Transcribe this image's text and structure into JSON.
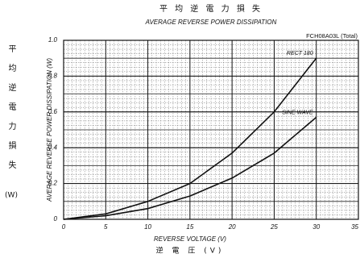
{
  "chart_data": {
    "type": "line",
    "title": "平 均 逆 電 力 損 失",
    "subtitle": "AVERAGE REVERSE POWER DISSIPATION",
    "part_label": "FCH08A03L (Total)",
    "y_label": "AVERAGE REVERSE POWER DISSIPATION (W)",
    "y_label_jp": "平均逆電力損失",
    "y_unit_jp": "(W)",
    "x_label": "REVERSE VOLTAGE (V)",
    "x_label_jp": "逆 電 圧 (V)",
    "x": [
      0,
      5,
      10,
      15,
      20,
      25,
      30
    ],
    "series": [
      {
        "name": "RECT 180",
        "color": "#111111",
        "values": [
          0,
          0.03,
          0.1,
          0.2,
          0.37,
          0.6,
          0.9
        ]
      },
      {
        "name": "SINE WAVE",
        "color": "#111111",
        "values": [
          0,
          0.02,
          0.06,
          0.13,
          0.23,
          0.37,
          0.57
        ]
      }
    ],
    "xlim": [
      0,
      35
    ],
    "xticks": [
      0,
      5,
      10,
      15,
      20,
      25,
      30,
      35
    ],
    "ylim": [
      0,
      1
    ],
    "yticks": [
      0,
      {
        "value": 0.2,
        "label": "0.2"
      },
      {
        "value": 0.4,
        "label": "0.4"
      },
      {
        "value": 0.6,
        "label": "0.6"
      },
      {
        "value": 0.8,
        "label": "0.8"
      },
      {
        "value": 1,
        "label": "1.0"
      }
    ],
    "grid": true
  }
}
